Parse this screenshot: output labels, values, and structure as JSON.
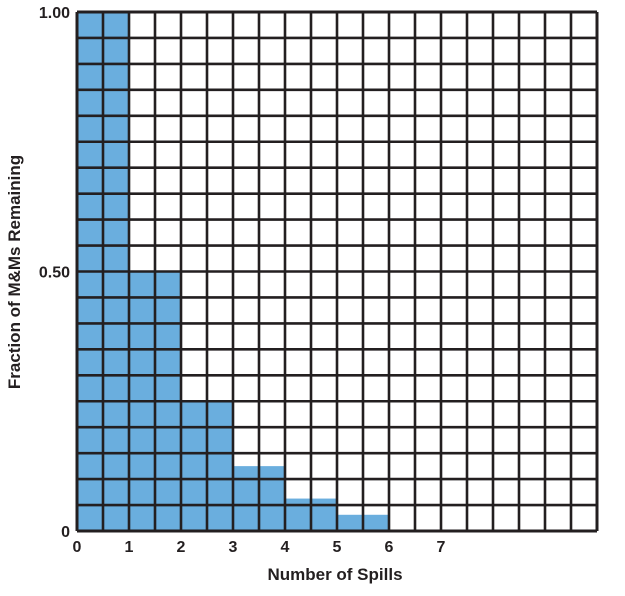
{
  "chart_data": {
    "type": "bar",
    "xlabel": "Number of Spills",
    "ylabel": "Fraction of M&Ms Remaining",
    "x_ticks": [
      "0",
      "1",
      "2",
      "3",
      "4",
      "5",
      "6",
      "7"
    ],
    "y_ticks": [
      "0",
      "0.50",
      "1.00"
    ],
    "y_tick_values": [
      0,
      0.5,
      1.0
    ],
    "xlim": [
      0,
      10
    ],
    "ylim": [
      0,
      1.0
    ],
    "grid": true,
    "grid_columns": 20,
    "grid_rows": 20,
    "bars": [
      {
        "x_start": 0,
        "x_end": 1,
        "value": 1.0
      },
      {
        "x_start": 1,
        "x_end": 2,
        "value": 0.5
      },
      {
        "x_start": 2,
        "x_end": 3,
        "value": 0.25
      },
      {
        "x_start": 3,
        "x_end": 4,
        "value": 0.125
      },
      {
        "x_start": 4,
        "x_end": 5,
        "value": 0.0625
      },
      {
        "x_start": 5,
        "x_end": 6,
        "value": 0.03125
      }
    ],
    "colors": {
      "bar_fill": "#6aaede",
      "grid_line": "#231f20",
      "background": "#ffffff"
    }
  }
}
